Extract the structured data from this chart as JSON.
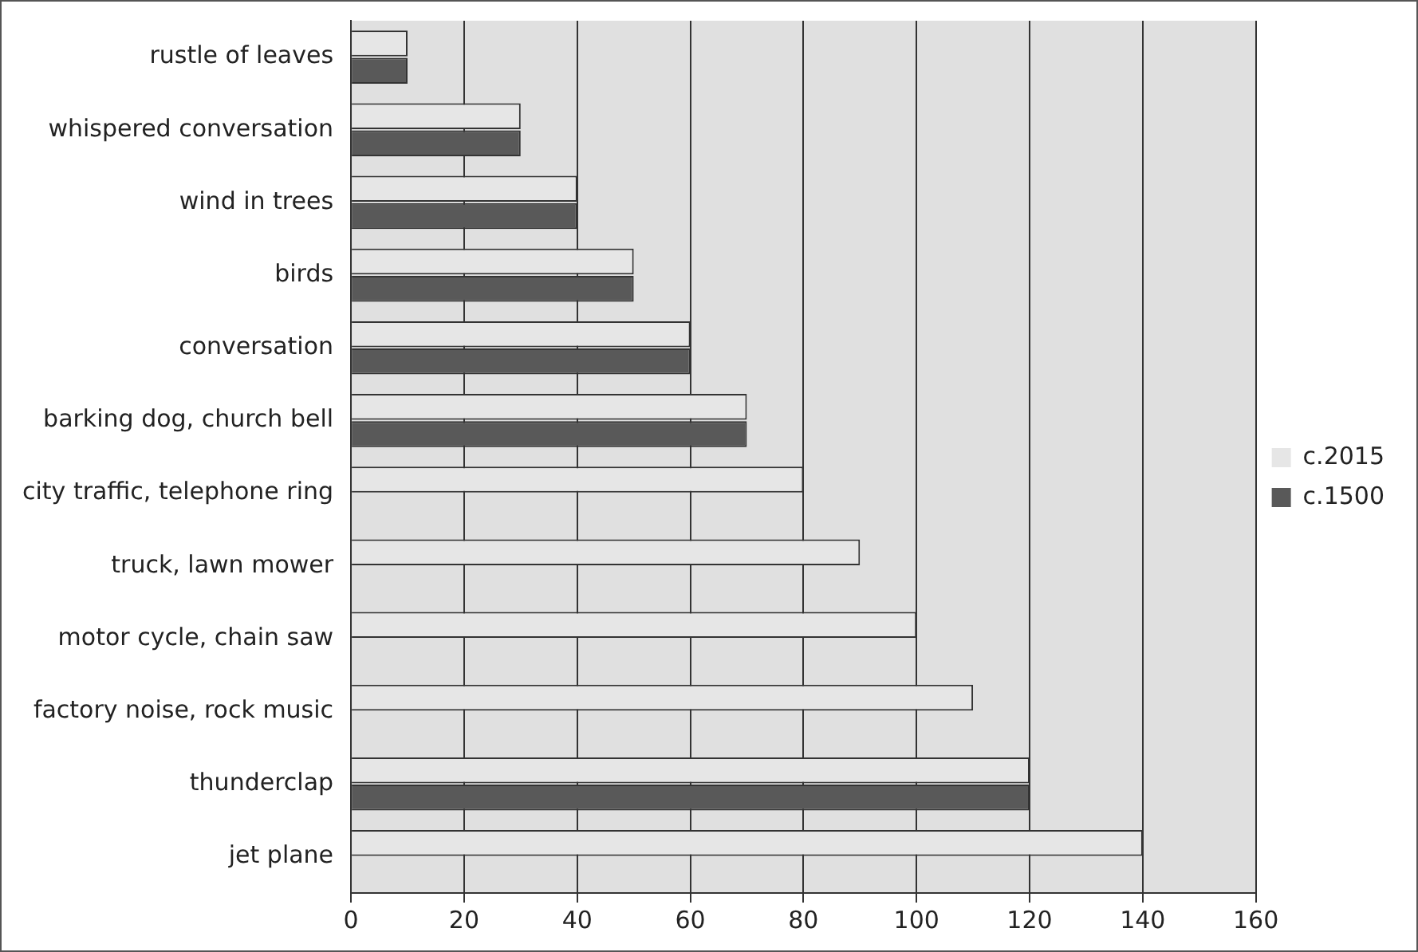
{
  "chart_data": {
    "type": "bar",
    "orientation": "horizontal",
    "categories": [
      "rustle of leaves",
      "whispered conversation",
      "wind in trees",
      "birds",
      "conversation",
      "barking dog, church bell",
      "city traffic, telephone ring",
      "truck, lawn mower",
      "motor cycle, chain saw",
      "factory noise, rock music",
      "thunderclap",
      "jet plane"
    ],
    "series": [
      {
        "name": "c.2015",
        "color": "#e6e6e6",
        "values": [
          10,
          30,
          40,
          50,
          60,
          70,
          80,
          90,
          100,
          110,
          120,
          140
        ]
      },
      {
        "name": "c.1500",
        "color": "#595959",
        "values": [
          10,
          30,
          40,
          50,
          60,
          70,
          null,
          null,
          null,
          null,
          120,
          null
        ]
      }
    ],
    "xlim": [
      0,
      160
    ],
    "xticks": [
      0,
      20,
      40,
      60,
      80,
      100,
      120,
      140,
      160
    ],
    "grid": "x",
    "legend": "right"
  }
}
